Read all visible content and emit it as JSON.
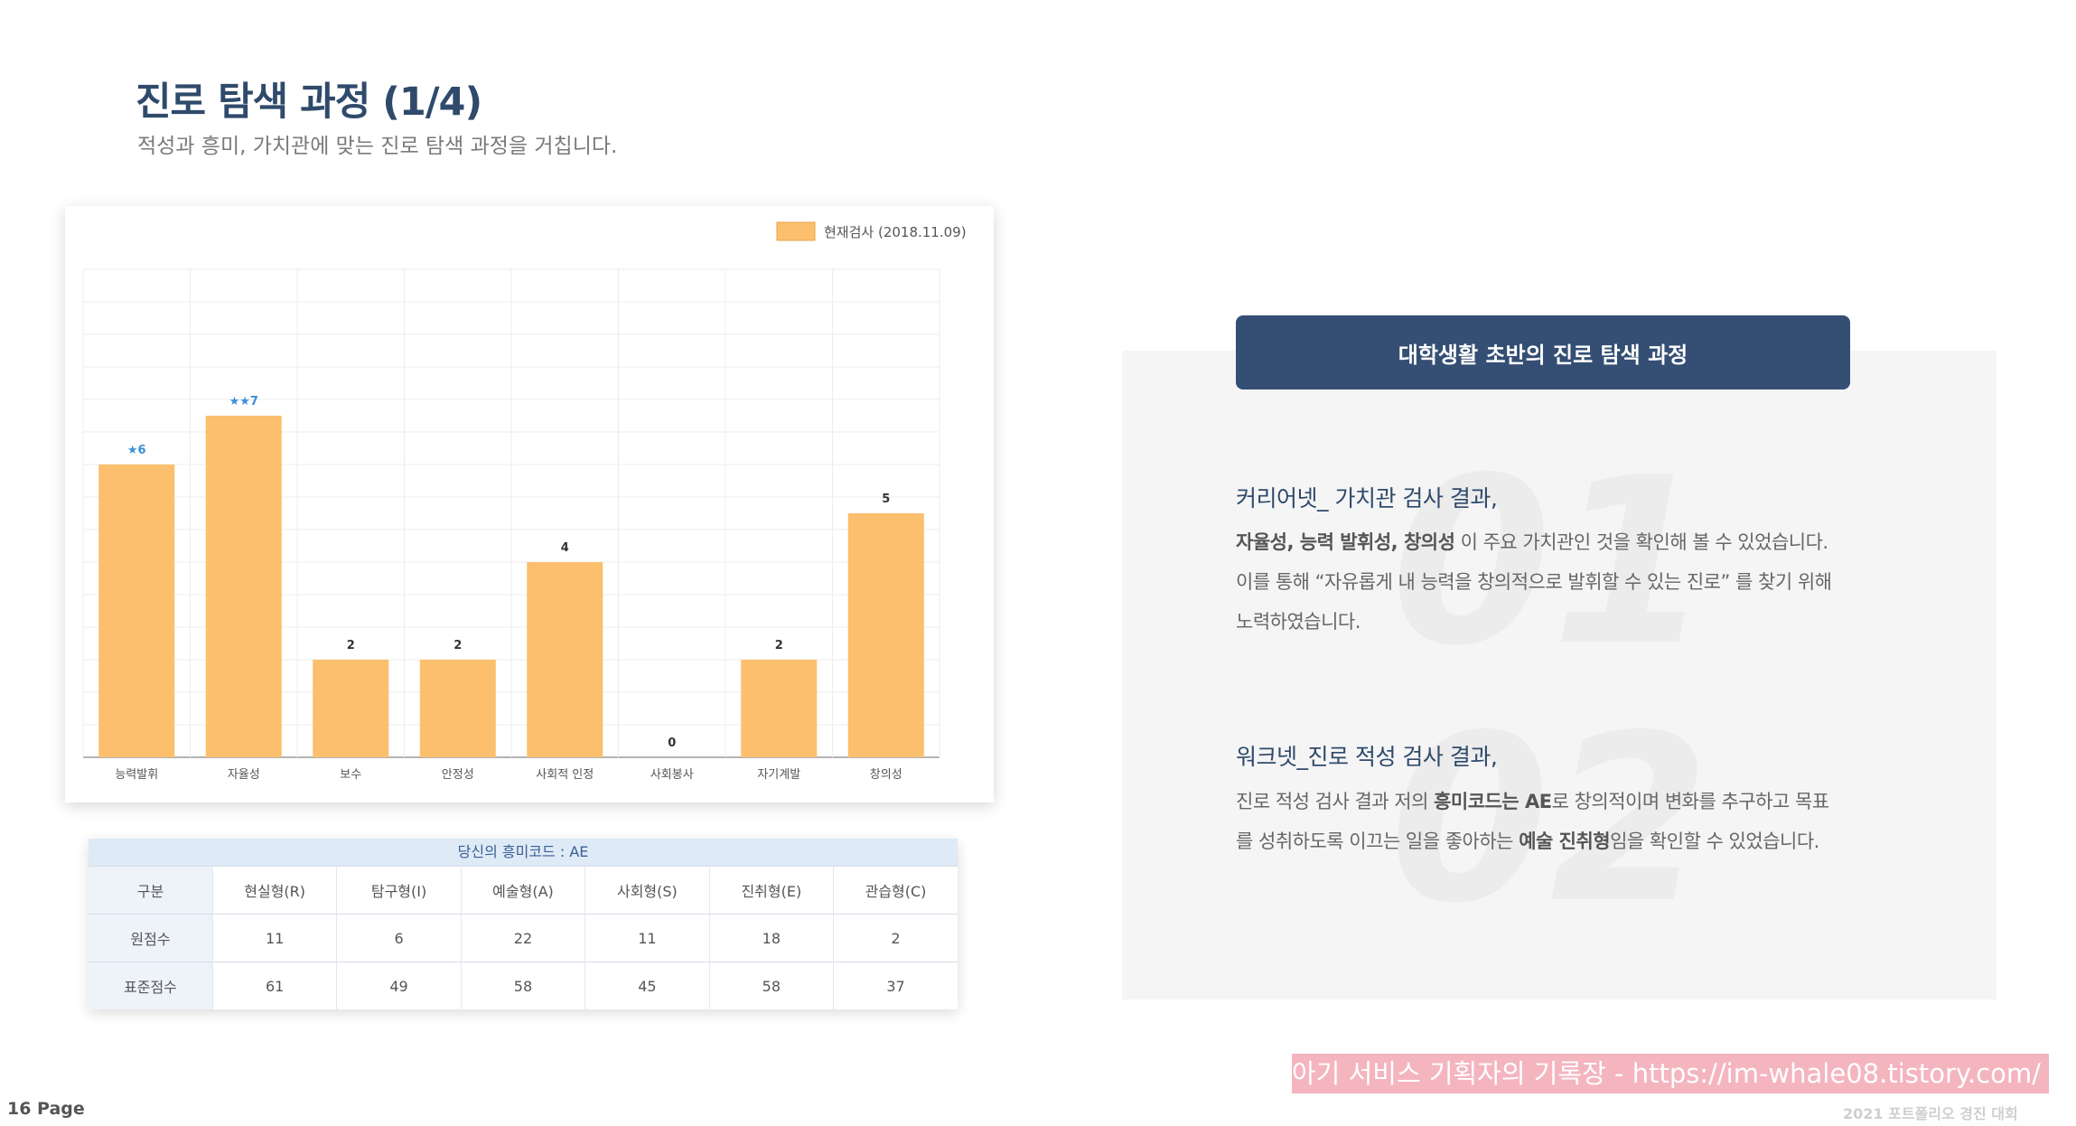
{
  "header": {
    "title": "진로 탐색 과정 (1/4)",
    "subtitle": "적성과 흥미, 가치관에 맞는 진로 탐색 과정을 거칩니다."
  },
  "chart_data": {
    "type": "bar",
    "title": "",
    "xlabel": "",
    "ylabel": "",
    "categories": [
      "능력발휘",
      "자율성",
      "보수",
      "안정성",
      "사회적 인정",
      "사회봉사",
      "자기계발",
      "창의성"
    ],
    "series": [
      {
        "name": "현재검사 (2018.11.09)",
        "values": [
          6,
          7,
          2,
          2,
          4,
          0,
          2,
          5
        ]
      }
    ],
    "data_labels": [
      "★6",
      "★★7",
      "2",
      "2",
      "4",
      "0",
      "2",
      "5"
    ],
    "ylim": [
      0,
      10
    ],
    "grid": true,
    "legend_position": "top-right",
    "bar_color": "#fbbf6e",
    "star_color": "#3b8fd6"
  },
  "interest_table": {
    "caption": "당신의 흥미코드 : AE",
    "headers": [
      "구분",
      "현실형(R)",
      "탐구형(I)",
      "예술형(A)",
      "사회형(S)",
      "진취형(E)",
      "관습형(C)"
    ],
    "rows": [
      [
        "원점수",
        "11",
        "6",
        "22",
        "11",
        "18",
        "2"
      ],
      [
        "표준점수",
        "61",
        "49",
        "58",
        "45",
        "58",
        "37"
      ]
    ]
  },
  "panel": {
    "header": "대학생활 초반의 진로 탐색 과정",
    "items": [
      {
        "number": "01",
        "title": "커리어넷_ 가치관 검사 결과,",
        "line1_bold": "자율성, 능력 발휘성, 창의성",
        "line1_rest": " 이  주요 가치관인 것을 확인해 볼 수 있었습니다.",
        "line2": "이를 통해 “자유롭게 내 능력을 창의적으로 발휘할 수 있는 진로” 를 찾기 위해",
        "line3": "노력하였습니다."
      },
      {
        "number": "02",
        "title": "워크넷_진로 적성 검사 결과,",
        "line1_pre": "진로 적성 검사 결과 저의 ",
        "line1_bold": "흥미코드는 AE",
        "line1_rest": "로 창의적이며 변화를 추구하고 목표",
        "line2_pre": "를 성취하도록 이끄는 일을 좋아하는 ",
        "line2_bold": "예술 진취형",
        "line2_rest": "임을 확인할 수 있었습니다."
      }
    ]
  },
  "footer": {
    "page": "16 Page",
    "watermark": "아기 서비스 기획자의 기록장 - https://im-whale08.tistory.com/",
    "contest": "2021 포트폴리오 경진 대회"
  },
  "colors": {
    "title": "#2f4a6b",
    "header_bg": "#344f73",
    "panel_bg": "#f5f5f5",
    "bar": "#fbbf6e",
    "watermark_bg": "#f4b5bf"
  }
}
